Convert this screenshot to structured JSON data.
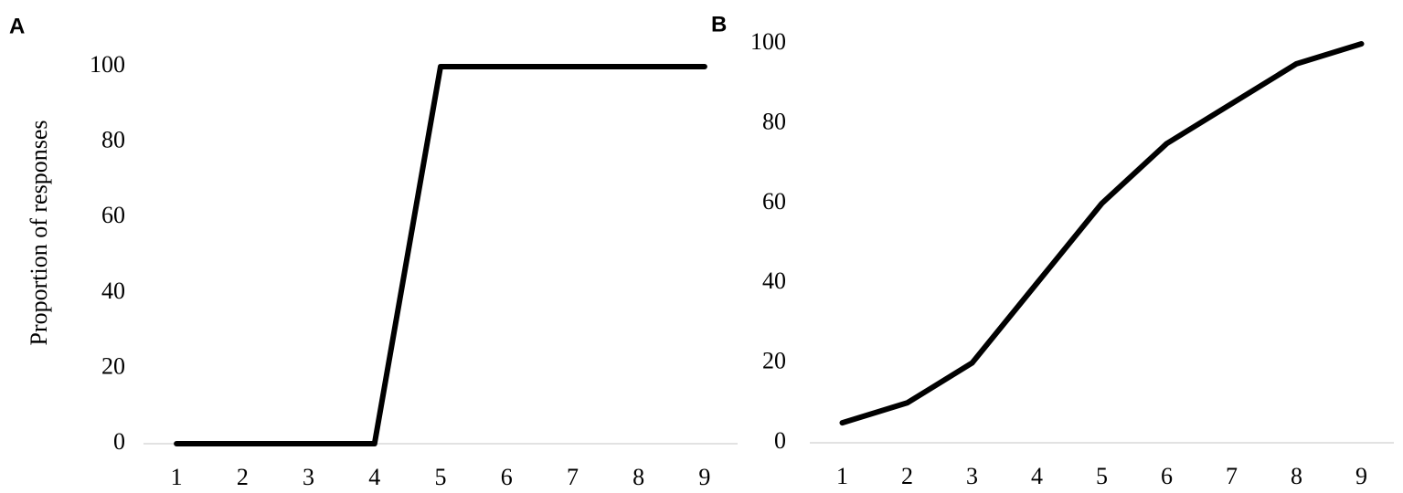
{
  "chart_data": [
    {
      "type": "line",
      "panel_label": "A",
      "y_label": "Proportion of responses",
      "categories": [
        "1",
        "2",
        "3",
        "4",
        "5",
        "6",
        "7",
        "8",
        "9"
      ],
      "values": [
        0,
        0,
        0,
        0,
        100,
        100,
        100,
        100,
        100
      ],
      "color": "#000000",
      "ylim": [
        0,
        100
      ],
      "yticks": [
        0,
        20,
        40,
        60,
        80,
        100
      ],
      "grid": false
    },
    {
      "type": "line",
      "panel_label": "B",
      "categories": [
        "1",
        "2",
        "3",
        "4",
        "5",
        "6",
        "7",
        "8",
        "9"
      ],
      "values": [
        5,
        10,
        20,
        40,
        60,
        75,
        85,
        95,
        100
      ],
      "color": "#000000",
      "ylim": [
        0,
        100
      ],
      "yticks": [
        0,
        20,
        40,
        60,
        80,
        100
      ],
      "grid": false
    }
  ]
}
